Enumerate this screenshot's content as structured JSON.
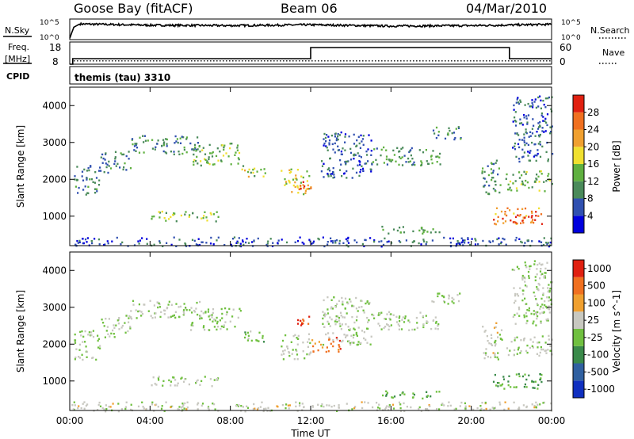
{
  "header": {
    "station": "Goose Bay (fitACF)",
    "beam": "Beam 06",
    "date": "04/Mar/2010"
  },
  "aux_panels": {
    "nsky_label": "N.Sky",
    "nsky_ticks": [
      "10^5",
      "10^0"
    ],
    "nsearch_label": "N.Search",
    "nsearch_ticks": [
      "10^5",
      "10^0"
    ],
    "freq_label": "Freq.",
    "freq_unit": "[MHz]",
    "freq_ticks": [
      "18",
      "8"
    ],
    "nave_label": "Nave",
    "nave_ticks": [
      "60",
      "0"
    ],
    "cpid_label": "CPID",
    "cpid_text": "themis (tau) 3310"
  },
  "chart_data": [
    {
      "type": "line",
      "name": "nsky-nsearch",
      "x": [
        0,
        0.2,
        0.5,
        4,
        8,
        12,
        16,
        20,
        24
      ],
      "y": [
        0.3,
        3.0,
        3.8,
        3.5,
        3.4,
        3.6,
        3.3,
        3.4,
        3.7
      ],
      "ylim": [
        0,
        5
      ]
    },
    {
      "type": "line",
      "name": "freq-nave",
      "freq": {
        "x": [
          0,
          0.15,
          0.15,
          12.0,
          12.0,
          21.9,
          21.9,
          24
        ],
        "y": [
          8,
          8,
          10.5,
          10.5,
          15.5,
          15.5,
          10.5,
          10.5
        ]
      },
      "nave_level": 10.2,
      "ylim": [
        8,
        18
      ]
    },
    {
      "type": "heatmap",
      "title": "",
      "xlabel": "",
      "ylabel": "Slant Range [km]",
      "x_range": [
        0,
        24
      ],
      "y_range": [
        200,
        4500
      ],
      "x_ticks": [
        "00:00",
        "04:00",
        "08:00",
        "12:00",
        "16:00",
        "20:00",
        "00:00"
      ],
      "y_ticks": [
        1000,
        2000,
        3000,
        4000
      ],
      "colorbar": {
        "label": "Power [dB]",
        "ticks": [
          "4",
          "8",
          "12",
          "16",
          "20",
          "24",
          "28"
        ],
        "colors": [
          "#0000dd",
          "#3050b0",
          "#4a8a5a",
          "#5fb040",
          "#f0e030",
          "#f0a030",
          "#f07020",
          "#e02010"
        ]
      },
      "regions": [
        {
          "t": [
            0.2,
            1.5
          ],
          "r": [
            1600,
            2400
          ],
          "v": 0.28
        },
        {
          "t": [
            1.5,
            3.0
          ],
          "r": [
            2200,
            2800
          ],
          "v": 0.3
        },
        {
          "t": [
            3.0,
            6.5
          ],
          "r": [
            2700,
            3200
          ],
          "v": 0.32
        },
        {
          "t": [
            6.0,
            8.5
          ],
          "r": [
            2400,
            3000
          ],
          "v": 0.4
        },
        {
          "t": [
            8.5,
            9.7
          ],
          "r": [
            2050,
            2400
          ],
          "v": 0.5
        },
        {
          "t": [
            4.0,
            7.5
          ],
          "r": [
            880,
            1150
          ],
          "v": 0.45
        },
        {
          "t": [
            10.5,
            12.0
          ],
          "r": [
            1600,
            2300
          ],
          "v": 0.55
        },
        {
          "t": [
            11.3,
            12.0
          ],
          "r": [
            1700,
            1950
          ],
          "v": 0.85
        },
        {
          "t": [
            12.5,
            15.0
          ],
          "r": [
            2000,
            3300
          ],
          "v": 0.22
        },
        {
          "t": [
            15.0,
            18.5
          ],
          "r": [
            2400,
            2900
          ],
          "v": 0.35
        },
        {
          "t": [
            18.0,
            19.5
          ],
          "r": [
            3100,
            3450
          ],
          "v": 0.3
        },
        {
          "t": [
            15.5,
            18.5
          ],
          "r": [
            550,
            750
          ],
          "v": 0.4
        },
        {
          "t": [
            20.5,
            21.5
          ],
          "r": [
            1600,
            2600
          ],
          "v": 0.28
        },
        {
          "t": [
            21.7,
            24.0
          ],
          "r": [
            1700,
            2250
          ],
          "v": 0.45
        },
        {
          "t": [
            22.0,
            24.0
          ],
          "r": [
            2500,
            4300
          ],
          "v": 0.22
        },
        {
          "t": [
            21.0,
            23.5
          ],
          "r": [
            800,
            1250
          ],
          "v": 0.75
        },
        {
          "t": [
            21.9,
            23.2
          ],
          "r": [
            850,
            1050
          ],
          "v": 0.95
        },
        {
          "t": [
            0.0,
            24.0
          ],
          "r": [
            200,
            450
          ],
          "v": 0.18
        }
      ]
    },
    {
      "type": "heatmap",
      "title": "",
      "xlabel": "Time UT",
      "ylabel": "Slant Range [km]",
      "x_range": [
        0,
        24
      ],
      "y_range": [
        200,
        4500
      ],
      "x_ticks": [
        "00:00",
        "04:00",
        "08:00",
        "12:00",
        "16:00",
        "20:00",
        "00:00"
      ],
      "y_ticks": [
        1000,
        2000,
        3000,
        4000
      ],
      "colorbar": {
        "label": "Velocity [m s^-1]",
        "ticks": [
          "1000",
          "500",
          "100",
          "25",
          "-25",
          "-100",
          "-500",
          "-1000"
        ],
        "colors": [
          "#1030c0",
          "#3060a0",
          "#3a8a4a",
          "#70c040",
          "#c8c8c0",
          "#f0a030",
          "#f07020",
          "#e02010"
        ]
      },
      "regions": [
        {
          "t": [
            0.2,
            1.5
          ],
          "r": [
            1600,
            2400
          ],
          "v": 0.5
        },
        {
          "t": [
            1.5,
            3.0
          ],
          "r": [
            2200,
            2800
          ],
          "v": 0.5
        },
        {
          "t": [
            3.0,
            6.5
          ],
          "r": [
            2700,
            3200
          ],
          "v": 0.5
        },
        {
          "t": [
            6.0,
            8.5
          ],
          "r": [
            2400,
            3000
          ],
          "v": 0.5
        },
        {
          "t": [
            8.5,
            9.7
          ],
          "r": [
            2050,
            2400
          ],
          "v": 0.45
        },
        {
          "t": [
            4.0,
            7.5
          ],
          "r": [
            880,
            1150
          ],
          "v": 0.5
        },
        {
          "t": [
            10.5,
            12.0
          ],
          "r": [
            1600,
            2300
          ],
          "v": 0.5
        },
        {
          "t": [
            11.3,
            12.0
          ],
          "r": [
            2500,
            2900
          ],
          "v": 0.85
        },
        {
          "t": [
            12.0,
            13.5
          ],
          "r": [
            1800,
            2200
          ],
          "v": 0.8
        },
        {
          "t": [
            12.5,
            15.0
          ],
          "r": [
            2000,
            3300
          ],
          "v": 0.5
        },
        {
          "t": [
            15.0,
            18.5
          ],
          "r": [
            2400,
            2900
          ],
          "v": 0.5
        },
        {
          "t": [
            18.0,
            19.5
          ],
          "r": [
            3100,
            3450
          ],
          "v": 0.5
        },
        {
          "t": [
            15.5,
            18.5
          ],
          "r": [
            550,
            750
          ],
          "v": 0.4
        },
        {
          "t": [
            20.5,
            21.5
          ],
          "r": [
            1600,
            2600
          ],
          "v": 0.55
        },
        {
          "t": [
            21.7,
            24.0
          ],
          "r": [
            1700,
            2250
          ],
          "v": 0.5
        },
        {
          "t": [
            22.0,
            24.0
          ],
          "r": [
            2500,
            4300
          ],
          "v": 0.5
        },
        {
          "t": [
            21.0,
            23.5
          ],
          "r": [
            800,
            1250
          ],
          "v": 0.35
        },
        {
          "t": [
            0.0,
            24.0
          ],
          "r": [
            200,
            450
          ],
          "v": 0.55
        }
      ]
    }
  ]
}
